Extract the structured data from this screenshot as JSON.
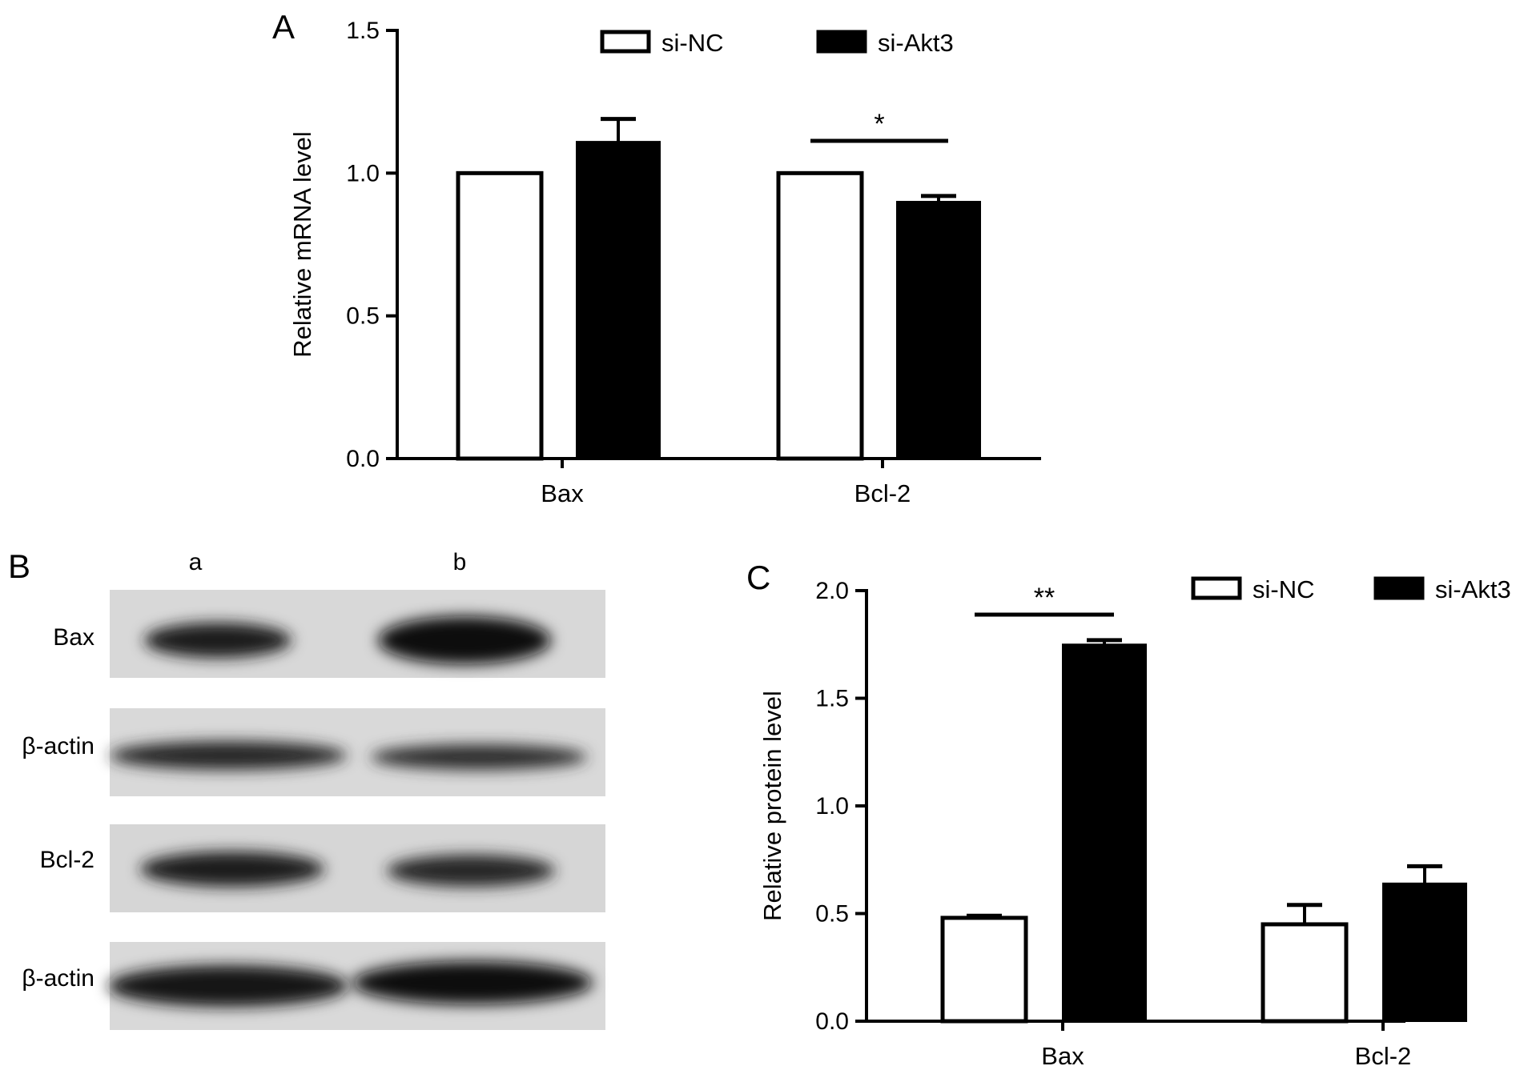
{
  "panels": {
    "a": {
      "letter": "A"
    },
    "b": {
      "letter": "B",
      "lanes": [
        "a",
        "b"
      ],
      "blots": [
        {
          "label": "Bax",
          "intensity": [
            0.85,
            0.95
          ]
        },
        {
          "label": "β-actin",
          "intensity": [
            0.78,
            0.74
          ]
        },
        {
          "label": "Bcl-2",
          "intensity": [
            0.8,
            0.74
          ]
        },
        {
          "label": "β-actin",
          "intensity": [
            0.88,
            0.9
          ]
        }
      ]
    },
    "c": {
      "letter": "C"
    }
  },
  "chart_data": [
    {
      "type": "bar",
      "panel": "A",
      "categories": [
        "Bax",
        "Bcl-2"
      ],
      "series": [
        {
          "name": "si-NC",
          "values": [
            1.0,
            1.0
          ],
          "errors": [
            0.0,
            0.0
          ],
          "fill": "#ffffff"
        },
        {
          "name": "si-Akt3",
          "values": [
            1.11,
            0.9
          ],
          "errors": [
            0.08,
            0.02
          ],
          "fill": "#000000"
        }
      ],
      "ylabel": "Relative mRNA level",
      "ylim": [
        0,
        1.5
      ],
      "yticks": [
        "0.0",
        "0.5",
        "1.0",
        "1.5"
      ],
      "significance": [
        {
          "category": "Bcl-2",
          "label": "*"
        }
      ],
      "legend": "top"
    },
    {
      "type": "bar",
      "panel": "C",
      "categories": [
        "Bax",
        "Bcl-2"
      ],
      "series": [
        {
          "name": "si-NC",
          "values": [
            0.48,
            0.45
          ],
          "errors": [
            0.01,
            0.09
          ],
          "fill": "#ffffff"
        },
        {
          "name": "si-Akt3",
          "values": [
            1.75,
            0.64
          ],
          "errors": [
            0.02,
            0.08
          ],
          "fill": "#000000"
        }
      ],
      "ylabel": "Relative protein level",
      "ylim": [
        0,
        2.0
      ],
      "yticks": [
        "0.0",
        "0.5",
        "1.0",
        "1.5",
        "2.0"
      ],
      "significance": [
        {
          "category": "Bax",
          "label": "**"
        }
      ],
      "legend": "top-right"
    }
  ]
}
